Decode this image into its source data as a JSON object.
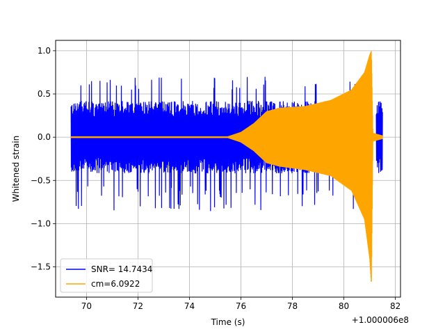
{
  "chart_data": {
    "type": "line",
    "title": "",
    "xlabel": "Time (s)",
    "ylabel": "Whitened strain",
    "x_offset_label": "+1.000006e8",
    "xlim": [
      68.8,
      82.2
    ],
    "ylim": [
      -1.85,
      1.12
    ],
    "x_ticks": [
      70,
      72,
      74,
      76,
      78,
      80,
      82
    ],
    "y_ticks": [
      -1.5,
      -1.0,
      -0.5,
      0.0,
      0.5,
      1.0
    ],
    "y_tick_labels": [
      "−1.5",
      "−1.0",
      "−0.5",
      "0.0",
      "0.5",
      "1.0"
    ],
    "grid": true,
    "legend_position": "lower-left",
    "series": [
      {
        "name": "SNR= 14.7434",
        "color": "#0000ff",
        "style": "noise",
        "x_range": [
          69.4,
          81.5
        ],
        "typical_amplitude": 0.42,
        "peak_max": 0.7,
        "peak_min": -0.86,
        "gap": [
          81.1,
          81.25
        ]
      },
      {
        "name": "cm=6.0922",
        "color": "#ffa500",
        "style": "chirp",
        "x_range": [
          69.4,
          81.5
        ],
        "envelope": [
          {
            "x": 69.4,
            "upper": 0.01,
            "lower": -0.01
          },
          {
            "x": 75.5,
            "upper": 0.01,
            "lower": -0.01
          },
          {
            "x": 76.0,
            "upper": 0.06,
            "lower": -0.06
          },
          {
            "x": 76.5,
            "upper": 0.16,
            "lower": -0.16
          },
          {
            "x": 77.0,
            "upper": 0.3,
            "lower": -0.3
          },
          {
            "x": 77.5,
            "upper": 0.34,
            "lower": -0.34
          },
          {
            "x": 78.5,
            "upper": 0.36,
            "lower": -0.38
          },
          {
            "x": 79.5,
            "upper": 0.43,
            "lower": -0.45
          },
          {
            "x": 80.3,
            "upper": 0.55,
            "lower": -0.62
          },
          {
            "x": 80.8,
            "upper": 0.75,
            "lower": -0.95
          },
          {
            "x": 81.0,
            "upper": 0.95,
            "lower": -1.4
          },
          {
            "x": 81.07,
            "upper": 1.0,
            "lower": -1.71
          },
          {
            "x": 81.13,
            "upper": 0.05,
            "lower": -0.05
          },
          {
            "x": 81.5,
            "upper": 0.02,
            "lower": -0.02
          }
        ]
      }
    ]
  }
}
